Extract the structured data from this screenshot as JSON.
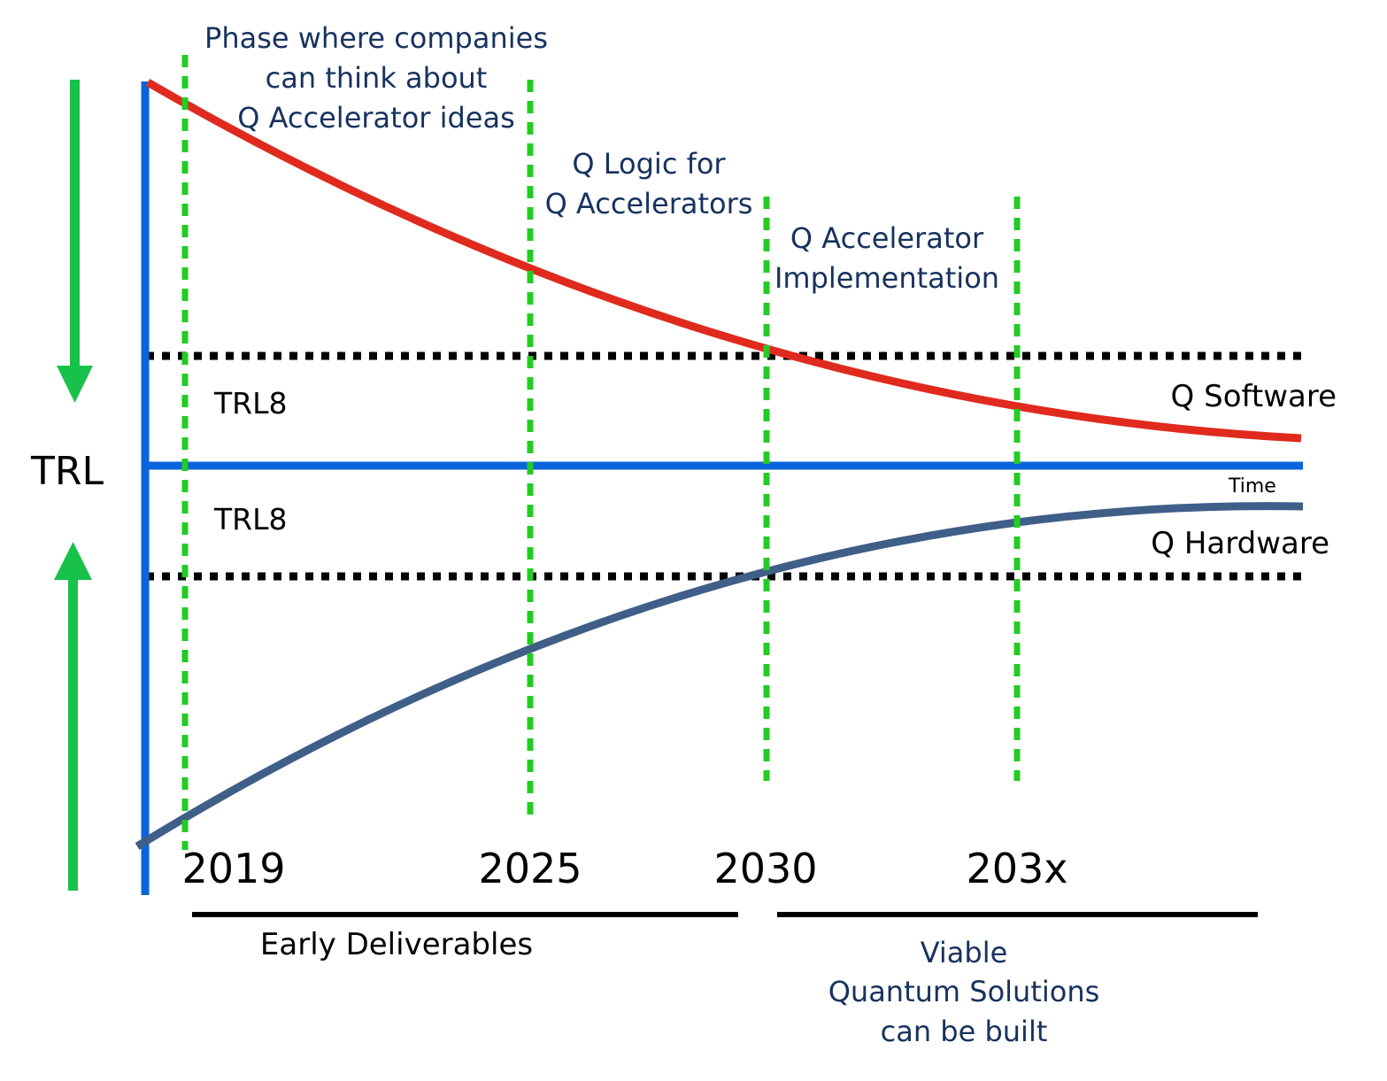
{
  "colors": {
    "axis": "#0a64dc",
    "software_curve": "#e02a1e",
    "hardware_curve": "#3f5f88",
    "phase_line": "#22cc22",
    "trl_line": "#000000",
    "arrow": "#18c24a",
    "annotation_text": "#17325e",
    "plain_text": "#000000"
  },
  "axis": {
    "y_label": "TRL",
    "x_label": "Time"
  },
  "trl_lines": {
    "upper_label": "TRL8",
    "lower_label": "TRL8"
  },
  "curves": {
    "software_label": "Q Software",
    "hardware_label": "Q Hardware"
  },
  "years": [
    "2019",
    "2025",
    "2030",
    "203x"
  ],
  "phases": {
    "phase1": [
      "Phase where companies",
      "can think about",
      "Q Accelerator ideas"
    ],
    "phase2": [
      "Q Logic for",
      "Q Accelerators"
    ],
    "phase3": [
      "Q Accelerator",
      "Implementation"
    ]
  },
  "periods": {
    "early": "Early Deliverables",
    "viable": [
      "Viable",
      "Quantum Solutions",
      "can be built"
    ]
  },
  "icons": {
    "down_arrow": "arrow-down-icon",
    "up_arrow": "arrow-up-icon"
  }
}
